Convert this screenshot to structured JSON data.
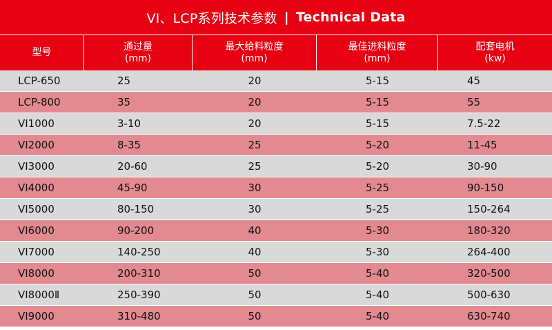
{
  "title": {
    "cn": "VI、LCP系列技术参数",
    "separator": "|",
    "en": "Technical Data"
  },
  "columns": [
    {
      "label": "型号",
      "unit": ""
    },
    {
      "label": "通过量",
      "unit": "(mm)"
    },
    {
      "label": "最大给料粒度",
      "unit": "(mm)"
    },
    {
      "label": "最佳进料粒度",
      "unit": "(mm)"
    },
    {
      "label": "配套电机",
      "unit": "(kw)"
    }
  ],
  "rows": [
    [
      "LCP-650",
      "25",
      "20",
      "5-15",
      "45"
    ],
    [
      "LCP-800",
      "35",
      "20",
      "5-15",
      "55"
    ],
    [
      "VI1000",
      "3-10",
      "20",
      "5-15",
      "7.5-22"
    ],
    [
      "VI2000",
      "8-35",
      "25",
      "5-20",
      "11-45"
    ],
    [
      "VI3000",
      "20-60",
      "25",
      "5-20",
      "30-90"
    ],
    [
      "VI4000",
      "45-90",
      "30",
      "5-25",
      "90-150"
    ],
    [
      "VI5000",
      "80-150",
      "30",
      "5-25",
      "150-264"
    ],
    [
      "VI6000",
      "90-200",
      "40",
      "5-30",
      "180-320"
    ],
    [
      "VI7000",
      "140-250",
      "40",
      "5-30",
      "264-400"
    ],
    [
      "VI8000",
      "200-310",
      "50",
      "5-40",
      "320-500"
    ],
    [
      "VI8000Ⅱ",
      "250-390",
      "50",
      "5-40",
      "500-630"
    ],
    [
      "VI9000",
      "310-480",
      "50",
      "5-40",
      "630-740"
    ]
  ],
  "colors": {
    "header": "#e60012",
    "row_grey": "#d9d9d9",
    "row_pink": "#e28a8f"
  }
}
